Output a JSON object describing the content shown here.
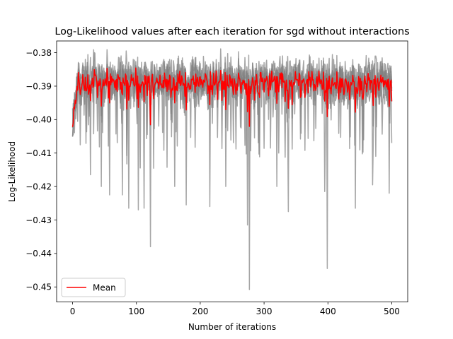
{
  "chart_data": {
    "type": "line",
    "title": "Log-Likelihood values after each iteration for sgd without interactions",
    "xlabel": "Number of iterations",
    "ylabel": "Log-Likelihood",
    "xlim": [
      -25,
      525
    ],
    "ylim": [
      -0.4545,
      -0.3765
    ],
    "x_ticks": [
      0,
      100,
      200,
      300,
      400,
      500
    ],
    "x_tick_labels": [
      "0",
      "100",
      "200",
      "300",
      "400",
      "500"
    ],
    "y_ticks": [
      -0.45,
      -0.44,
      -0.43,
      -0.42,
      -0.41,
      -0.4,
      -0.39,
      -0.38
    ],
    "y_tick_labels": [
      "−0.45",
      "−0.44",
      "−0.43",
      "−0.42",
      "−0.41",
      "−0.40",
      "−0.39",
      "−0.38"
    ],
    "grid": false,
    "legend": {
      "placement": "lower-left",
      "entries": [
        "Mean"
      ]
    },
    "colors": {
      "runs": "#808080",
      "mean": "#ff0000"
    },
    "series_generation": {
      "n_runs": 5,
      "n_points": 501,
      "x_start": 0,
      "x_step": 1
    },
    "spikes": [
      {
        "x": 122,
        "y": -0.438
      },
      {
        "x": 274,
        "y": -0.4315
      },
      {
        "x": 277,
        "y": -0.4508
      },
      {
        "x": 399,
        "y": -0.4445
      },
      {
        "x": 88,
        "y": -0.4265
      },
      {
        "x": 103,
        "y": -0.427
      },
      {
        "x": 112,
        "y": -0.4265
      },
      {
        "x": 178,
        "y": -0.4255
      },
      {
        "x": 215,
        "y": -0.426
      },
      {
        "x": 338,
        "y": -0.4275
      },
      {
        "x": 443,
        "y": -0.4265
      },
      {
        "x": 496,
        "y": -0.422
      },
      {
        "x": 58,
        "y": -0.4225
      },
      {
        "x": 78,
        "y": -0.4225
      },
      {
        "x": 28,
        "y": -0.4165
      },
      {
        "x": 45,
        "y": -0.42
      },
      {
        "x": 160,
        "y": -0.42
      },
      {
        "x": 240,
        "y": -0.42
      },
      {
        "x": 320,
        "y": -0.42
      },
      {
        "x": 395,
        "y": -0.4215
      },
      {
        "x": 470,
        "y": -0.4195
      }
    ],
    "series": [
      {
        "name": "Mean",
        "pattern": "mean",
        "center": -0.3885
      }
    ]
  }
}
